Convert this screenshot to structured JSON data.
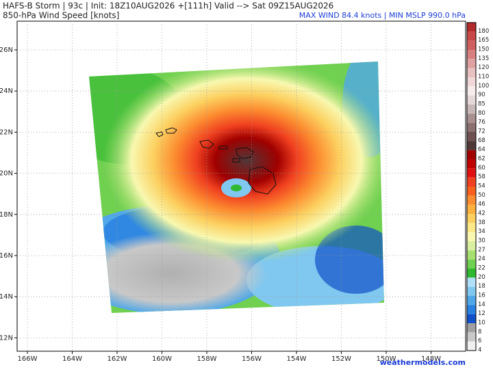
{
  "header": {
    "title": "HAFS-B Storm | 93c | Init: 18Z10AUG2026 +[111h] Valid --> Sat 09Z15AUG2026",
    "subtitle": "850-hPa Wind Speed [knots]",
    "stats": "MAX WIND 84.4 knots | MIN MSLP 990.0 hPa"
  },
  "map": {
    "lat_labels": [
      "26N",
      "24N",
      "22N",
      "20N",
      "18N",
      "16N",
      "14N",
      "12N"
    ],
    "lon_labels": [
      "166W",
      "164W",
      "162W",
      "160W",
      "158W",
      "156W",
      "154W",
      "152W",
      "150W",
      "148W"
    ],
    "watermark": "weathermodels.com"
  },
  "colorbar": {
    "labels": [
      "180",
      "165",
      "150",
      "135",
      "120",
      "110",
      "100",
      "90",
      "85",
      "80",
      "76",
      "72",
      "68",
      "64",
      "62",
      "60",
      "58",
      "54",
      "50",
      "46",
      "42",
      "38",
      "34",
      "30",
      "27",
      "24",
      "22",
      "20",
      "18",
      "16",
      "14",
      "12",
      "10",
      "8",
      "6",
      "4"
    ],
    "colors": [
      "#b22a2a",
      "#c84848",
      "#d06060",
      "#d88080",
      "#e0a0a0",
      "#e8c0c0",
      "#f0d8d8",
      "#f8ecec",
      "#e4d8d8",
      "#c8b8b8",
      "#a89090",
      "#8c7070",
      "#6e5050",
      "#503838",
      "#a00000",
      "#c00000",
      "#e01010",
      "#f04020",
      "#f86020",
      "#fc8c30",
      "#fcb040",
      "#fcd060",
      "#fce888",
      "#f8f8b0",
      "#d8f0a0",
      "#a8e070",
      "#70d050",
      "#30b830",
      "#b0e0f8",
      "#80c8f0",
      "#50a8e8",
      "#2880e0",
      "#1050c8",
      "#a0a0a0",
      "#c8c8c8",
      "#f0f0f0"
    ]
  }
}
